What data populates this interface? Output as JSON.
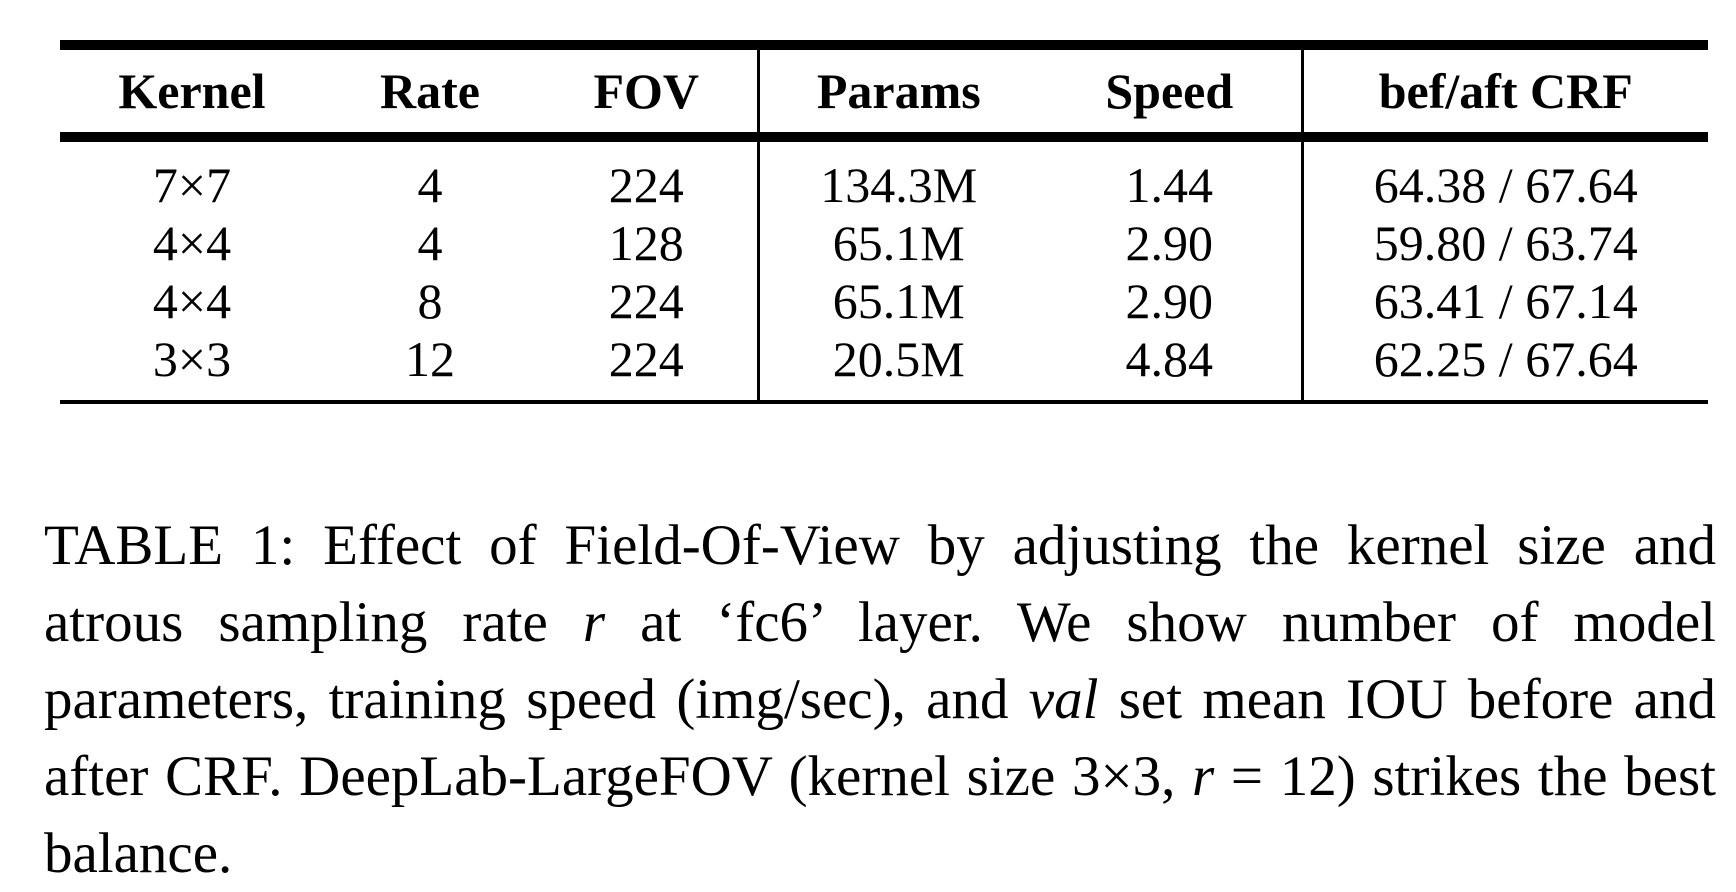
{
  "table": {
    "headers": [
      "Kernel",
      "Rate",
      "FOV",
      "Params",
      "Speed",
      "bef/aft CRF"
    ],
    "rows": [
      [
        "7×7",
        "4",
        "224",
        "134.3M",
        "1.44",
        "64.38 / 67.64"
      ],
      [
        "4×4",
        "4",
        "128",
        "65.1M",
        "2.90",
        "59.80 / 63.74"
      ],
      [
        "4×4",
        "8",
        "224",
        "65.1M",
        "2.90",
        "63.41 / 67.14"
      ],
      [
        "3×3",
        "12",
        "224",
        "20.5M",
        "4.84",
        "62.25 / 67.64"
      ]
    ]
  },
  "caption": {
    "part1": "TABLE 1: Effect of Field-Of-View by adjusting the kernel size and atrous sampling rate ",
    "r1": "r",
    "part2": " at ‘fc6’ layer. We show number of model parameters, training speed (img/sec), and ",
    "val": "val",
    "part3": " set mean IOU before and after CRF. DeepLab-LargeFOV (kernel size 3×3, ",
    "r2": "r",
    "part4": " = 12) strikes the best balance."
  }
}
